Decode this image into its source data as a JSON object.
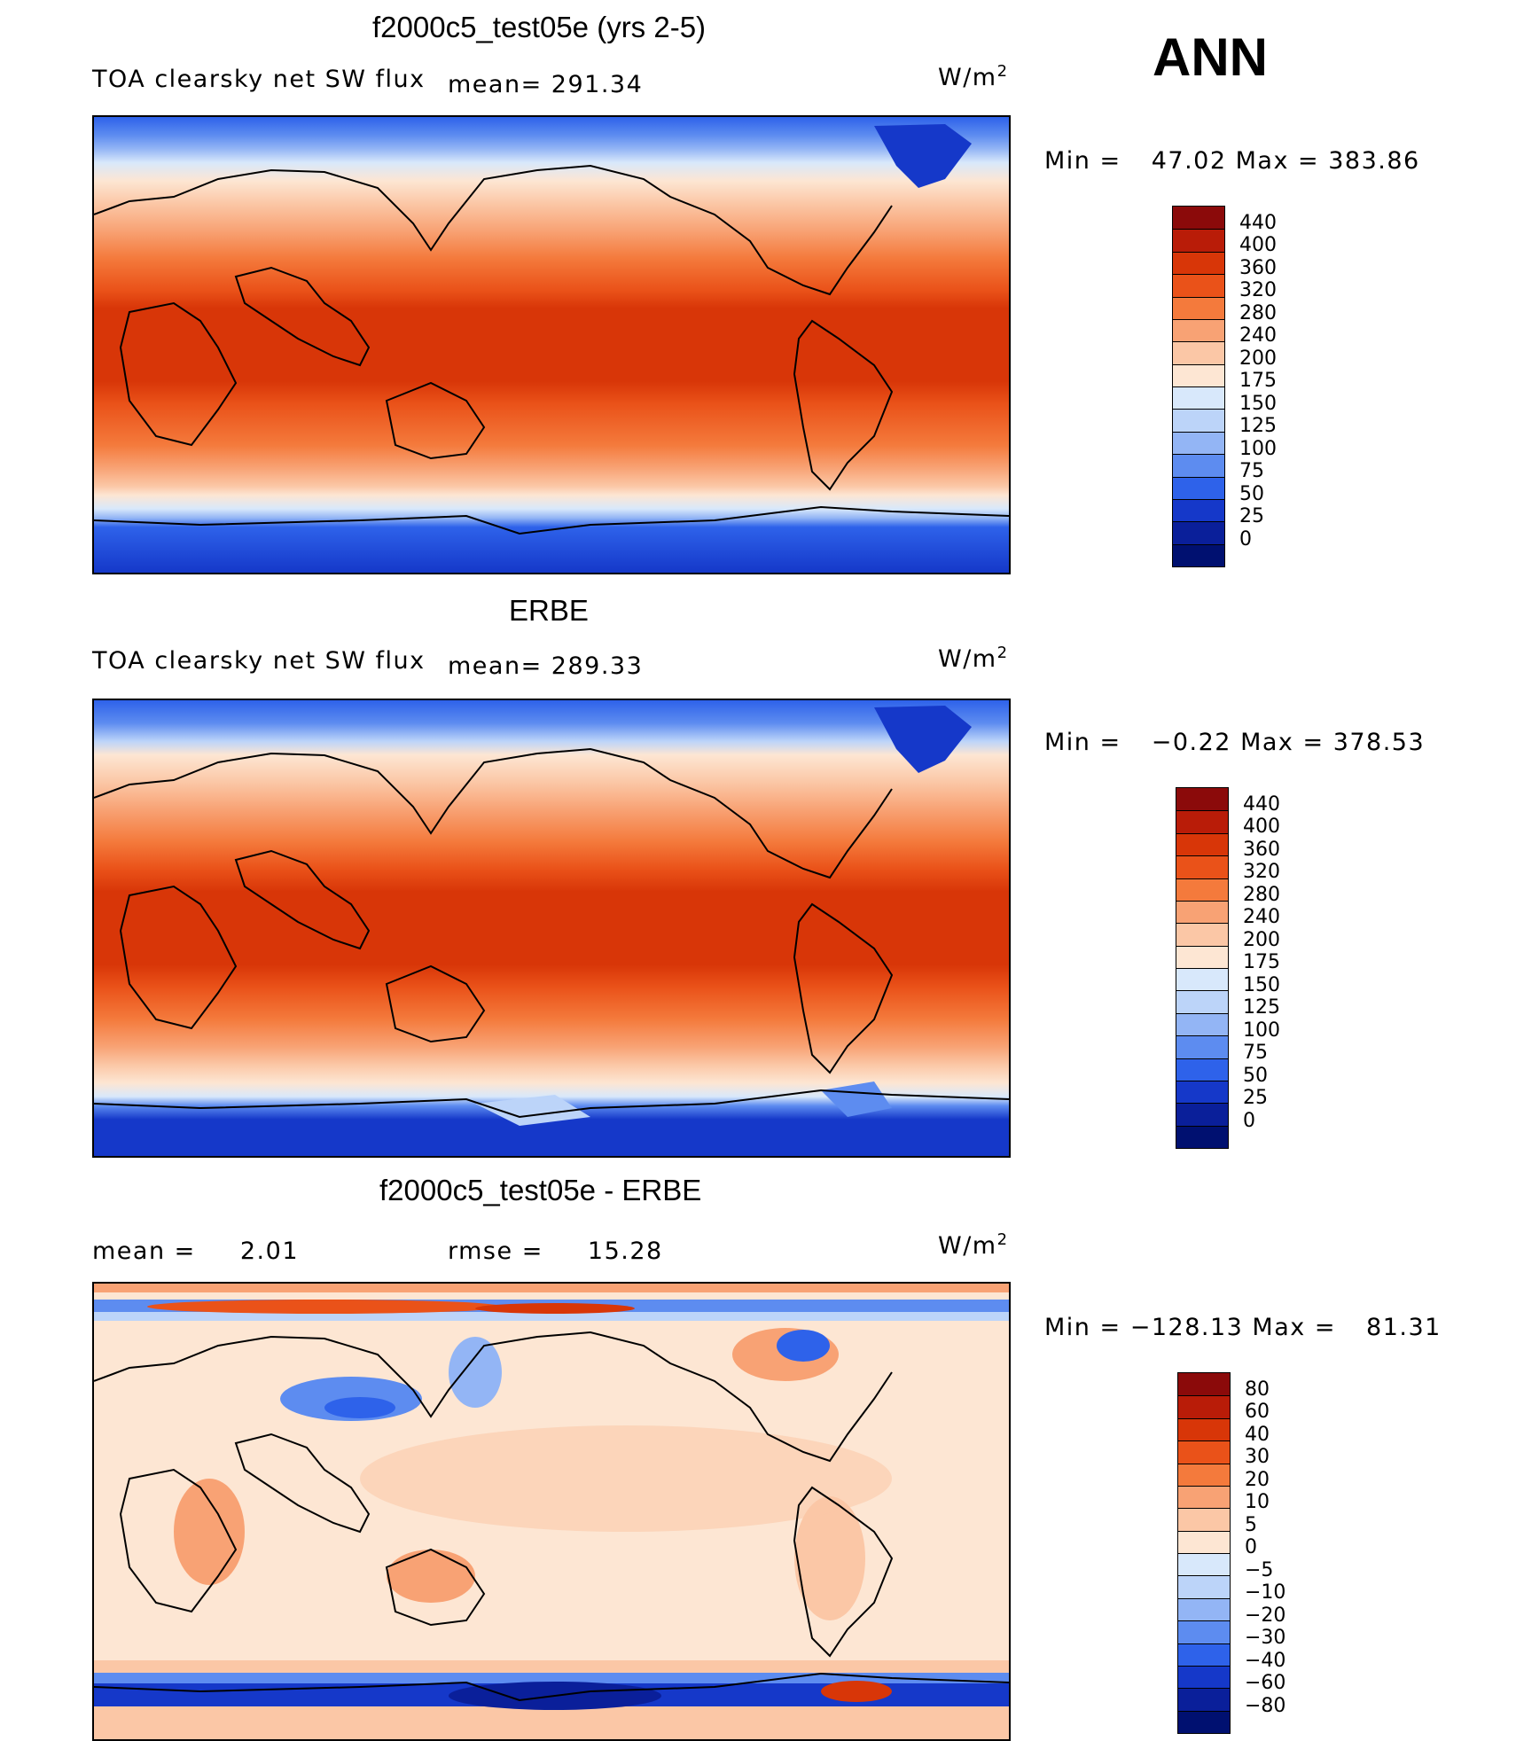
{
  "season": "ANN",
  "units_base": "W/m",
  "units_exp": "2",
  "panels": [
    {
      "title": "f2000c5_test05e (yrs 2-5)",
      "left_label": "TOA clearsky net SW flux",
      "center_label": "mean=",
      "center_value": "291.34",
      "min_label": "Min =",
      "min_value": "47.02",
      "max_label": "Max =",
      "max_value": "383.86",
      "colorbar_ticks": [
        "440",
        "400",
        "360",
        "320",
        "280",
        "240",
        "200",
        "175",
        "150",
        "125",
        "100",
        "75",
        "50",
        "25",
        "0"
      ],
      "colorbar_colors": [
        "#8b0a0a",
        "#b91c08",
        "#d83608",
        "#ea5219",
        "#f47a3c",
        "#f8a274",
        "#fbc7a6",
        "#fde6d3",
        "#d8e8fb",
        "#bcd4f9",
        "#93b5f5",
        "#5d8cf0",
        "#2e62ea",
        "#1538c9",
        "#0a1f9a",
        "#001070"
      ]
    },
    {
      "title": "ERBE",
      "left_label": "TOA clearsky net SW flux",
      "center_label": "mean=",
      "center_value": "289.33",
      "min_label": "Min =",
      "min_value": "−0.22",
      "max_label": "Max =",
      "max_value": "378.53",
      "colorbar_ticks": [
        "440",
        "400",
        "360",
        "320",
        "280",
        "240",
        "200",
        "175",
        "150",
        "125",
        "100",
        "75",
        "50",
        "25",
        "0"
      ],
      "colorbar_colors": [
        "#8b0a0a",
        "#b91c08",
        "#d83608",
        "#ea5219",
        "#f47a3c",
        "#f8a274",
        "#fbc7a6",
        "#fde6d3",
        "#d8e8fb",
        "#bcd4f9",
        "#93b5f5",
        "#5d8cf0",
        "#2e62ea",
        "#1538c9",
        "#0a1f9a",
        "#001070"
      ]
    },
    {
      "title": "f2000c5_test05e - ERBE",
      "left_label": "mean =",
      "left_value": "2.01",
      "center_label": "rmse =",
      "center_value": "15.28",
      "min_label": "Min =",
      "min_value": "−128.13",
      "max_label": "Max =",
      "max_value": "81.31",
      "colorbar_ticks": [
        "80",
        "60",
        "40",
        "30",
        "20",
        "10",
        "5",
        "0",
        "−5",
        "−10",
        "−20",
        "−30",
        "−40",
        "−60",
        "−80"
      ],
      "colorbar_colors": [
        "#8b0a0a",
        "#b91c08",
        "#d83608",
        "#ea5219",
        "#f47a3c",
        "#f8a274",
        "#fbc7a6",
        "#fde6d3",
        "#d8e8fb",
        "#bcd4f9",
        "#93b5f5",
        "#5d8cf0",
        "#2e62ea",
        "#1538c9",
        "#0a1f9a",
        "#001070"
      ]
    }
  ]
}
